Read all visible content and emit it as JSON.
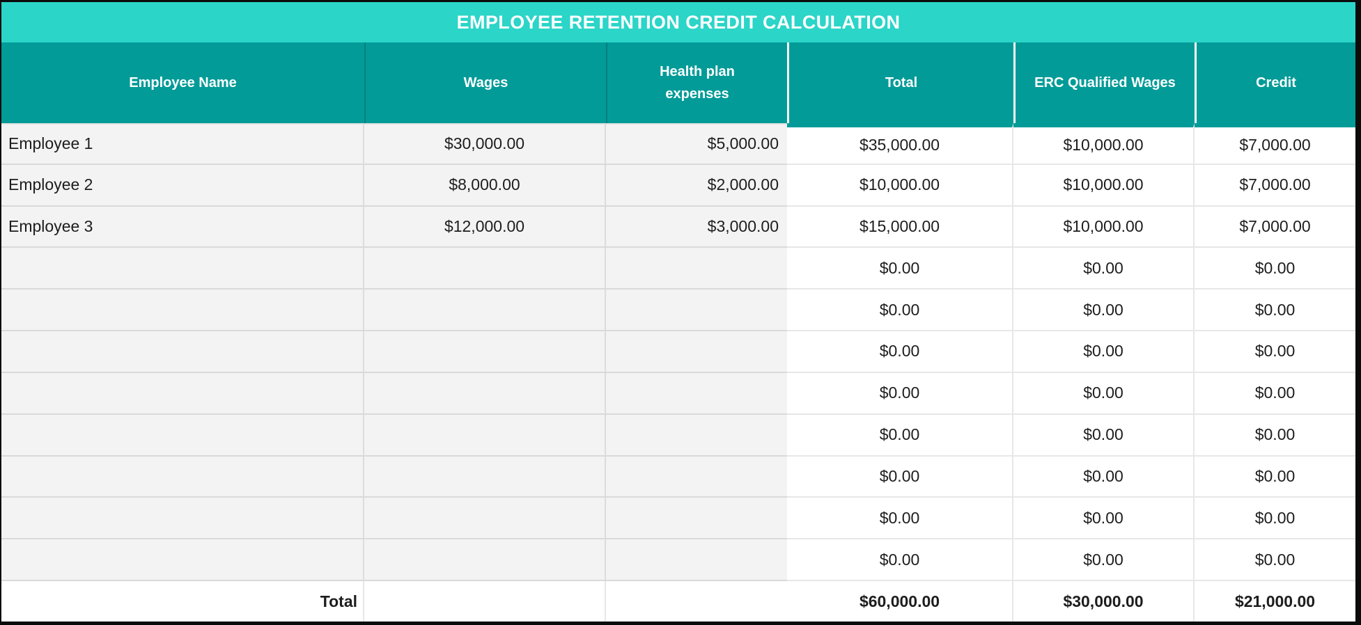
{
  "title": "EMPLOYEE RETENTION CREDIT CALCULATION",
  "columns": [
    {
      "id": "name",
      "label": "Employee Name"
    },
    {
      "id": "wages",
      "label": "Wages"
    },
    {
      "id": "health",
      "label": "Health plan\nexpenses"
    },
    {
      "id": "total",
      "label": "Total"
    },
    {
      "id": "erc",
      "label": "ERC Qualified Wages"
    },
    {
      "id": "credit",
      "label": "Credit"
    }
  ],
  "rows": [
    {
      "name": "Employee 1",
      "wages": "$30,000.00",
      "health": "$5,000.00",
      "total": "$35,000.00",
      "erc": "$10,000.00",
      "credit": "$7,000.00"
    },
    {
      "name": "Employee 2",
      "wages": "$8,000.00",
      "health": "$2,000.00",
      "total": "$10,000.00",
      "erc": "$10,000.00",
      "credit": "$7,000.00"
    },
    {
      "name": "Employee 3",
      "wages": "$12,000.00",
      "health": "$3,000.00",
      "total": "$15,000.00",
      "erc": "$10,000.00",
      "credit": "$7,000.00"
    },
    {
      "name": "",
      "wages": "",
      "health": "",
      "total": "$0.00",
      "erc": "$0.00",
      "credit": "$0.00"
    },
    {
      "name": "",
      "wages": "",
      "health": "",
      "total": "$0.00",
      "erc": "$0.00",
      "credit": "$0.00"
    },
    {
      "name": "",
      "wages": "",
      "health": "",
      "total": "$0.00",
      "erc": "$0.00",
      "credit": "$0.00"
    },
    {
      "name": "",
      "wages": "",
      "health": "",
      "total": "$0.00",
      "erc": "$0.00",
      "credit": "$0.00"
    },
    {
      "name": "",
      "wages": "",
      "health": "",
      "total": "$0.00",
      "erc": "$0.00",
      "credit": "$0.00"
    },
    {
      "name": "",
      "wages": "",
      "health": "",
      "total": "$0.00",
      "erc": "$0.00",
      "credit": "$0.00"
    },
    {
      "name": "",
      "wages": "",
      "health": "",
      "total": "$0.00",
      "erc": "$0.00",
      "credit": "$0.00"
    },
    {
      "name": "",
      "wages": "",
      "health": "",
      "total": "$0.00",
      "erc": "$0.00",
      "credit": "$0.00"
    }
  ],
  "total_row": {
    "label": "Total",
    "wages": "",
    "health": "",
    "total": "$60,000.00",
    "erc": "$30,000.00",
    "credit": "$21,000.00"
  },
  "colors": {
    "title_bg": "#2BD5C8",
    "header_bg": "#029B98",
    "header_text": "#FFFFFF",
    "row_gray": "#F3F3F3",
    "row_white": "#FFFFFF",
    "divider_gray": "#D9D9D9",
    "divider_white": "#E7E7E7",
    "frame": "#0B0B0B",
    "body_text": "#1D1D1D"
  }
}
